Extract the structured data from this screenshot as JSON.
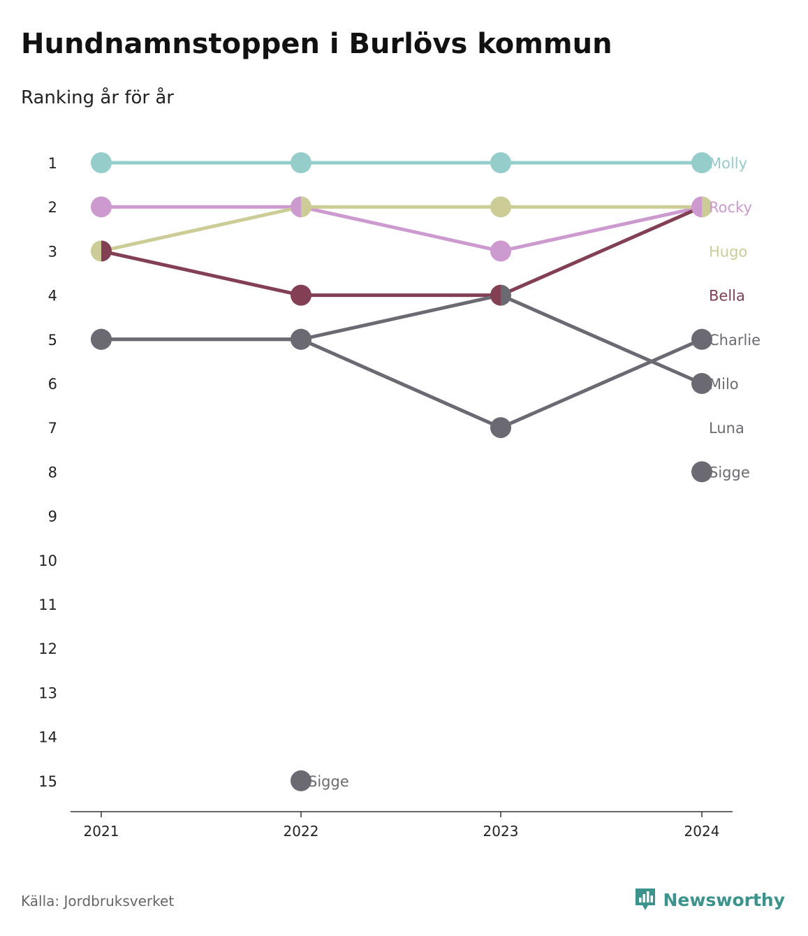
{
  "title": "Hundnamnstoppen i Burlövs kommun",
  "subtitle": "Ranking år för år",
  "source": "Källa: Jordbruksverket",
  "brand": {
    "name": "Newsworthy",
    "icon": "newsworthy-logo-icon",
    "color": "#3a948b"
  },
  "chart_data": {
    "type": "line",
    "x": [
      "2021",
      "2022",
      "2023",
      "2024"
    ],
    "y_ticks": [
      "1",
      "2",
      "3",
      "4",
      "5",
      "6",
      "7",
      "8",
      "9",
      "10",
      "11",
      "12",
      "13",
      "14",
      "15"
    ],
    "ylim": [
      1,
      15
    ],
    "y_inverted": true,
    "grid": false,
    "legend": "end-labels",
    "series": [
      {
        "name": "Molly",
        "color": "#95cdcb",
        "values": [
          1,
          1,
          1,
          1
        ]
      },
      {
        "name": "Rocky",
        "color": "#cc9acf",
        "values": [
          2,
          2,
          3,
          2
        ]
      },
      {
        "name": "Hugo",
        "color": "#cccd96",
        "values": [
          3,
          2,
          2,
          2
        ]
      },
      {
        "name": "Bella",
        "color": "#833f54",
        "values": [
          3,
          4,
          4,
          2
        ]
      },
      {
        "name": "Charlie",
        "color": "#6b6a73",
        "values": [
          5,
          5,
          7,
          5
        ]
      },
      {
        "name": "Milo",
        "color": "#6b6a73",
        "values": [
          5,
          5,
          4,
          6
        ]
      },
      {
        "name": "Luna",
        "color": "#6b6a73",
        "values": [
          null,
          null,
          null,
          null
        ]
      },
      {
        "name": "Sigge",
        "color": "#6b6a73",
        "values": [
          null,
          15,
          null,
          8
        ]
      }
    ],
    "point_labels": [
      {
        "series": "Sigge",
        "x": "2022",
        "text": "Sigge"
      }
    ]
  }
}
